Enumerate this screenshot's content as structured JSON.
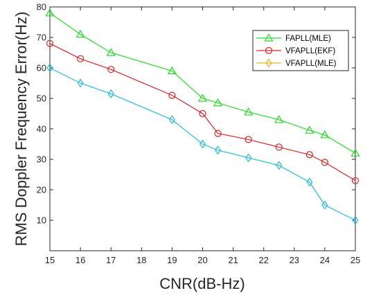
{
  "chart_data": {
    "type": "line",
    "xlabel": "CNR(dB-Hz)",
    "ylabel": "RMS Doppler Frequency Error(Hz)",
    "xlim": [
      15,
      25
    ],
    "ylim": [
      0,
      80
    ],
    "xticks": [
      15,
      16,
      17,
      18,
      19,
      20,
      21,
      22,
      23,
      24,
      25
    ],
    "yticks": [
      10,
      20,
      30,
      40,
      50,
      60,
      70,
      80
    ],
    "grid": false,
    "legend_position": "top-right",
    "series": [
      {
        "name": "FAPLL(MLE)",
        "color": "#22dd22",
        "marker": "triangle",
        "x": [
          15,
          16,
          17,
          19,
          20,
          20.5,
          21.5,
          22.5,
          23.5,
          24,
          25
        ],
        "y": [
          78,
          71,
          65,
          59,
          50,
          48.5,
          45.5,
          43,
          39.5,
          38,
          32
        ]
      },
      {
        "name": "VFAPLL(EKF)",
        "color": "#dd2222",
        "marker": "circle",
        "x": [
          15,
          16,
          17,
          19,
          20,
          20.5,
          21.5,
          22.5,
          23.5,
          24,
          25
        ],
        "y": [
          68,
          63,
          59.5,
          51,
          45,
          38.5,
          36.5,
          34,
          31.5,
          29,
          23
        ]
      },
      {
        "name": "VFAPLL(MLE)",
        "color": "#22bbdd",
        "legend_color": "#f0b020",
        "marker": "diamond",
        "x": [
          15,
          16,
          17,
          19,
          20,
          20.5,
          21.5,
          22.5,
          23.5,
          24,
          25
        ],
        "y": [
          60,
          55,
          51.5,
          43,
          35,
          33,
          30.5,
          28,
          22.5,
          15,
          10
        ]
      }
    ]
  }
}
